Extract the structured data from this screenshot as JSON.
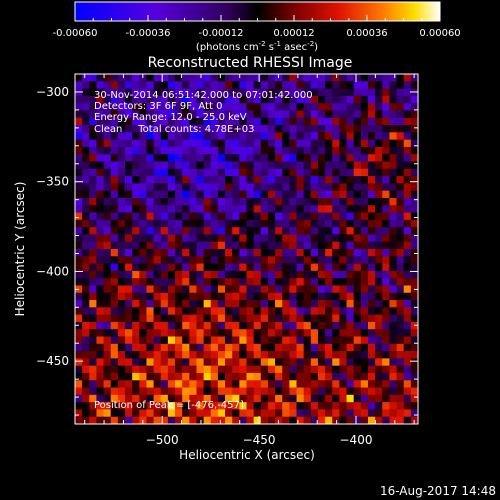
{
  "chart_data": {
    "type": "heatmap",
    "title": "Reconstructed RHESSI Image",
    "xlabel": "Heliocentric X (arcsec)",
    "ylabel": "Heliocentric Y (arcsec)",
    "xlim": [
      -545,
      -368
    ],
    "ylim": [
      -485,
      -290
    ],
    "xticks": [
      -500,
      -450,
      -400
    ],
    "yticks": [
      -300,
      -350,
      -400,
      -450
    ],
    "colorbar": {
      "min": -0.0006,
      "max": 0.0006,
      "ticks": [
        "-0.00060",
        "-0.00036",
        "-0.00012",
        "0.00012",
        "0.00036",
        "0.00060"
      ],
      "unit_parts": [
        "(photons cm",
        "-2",
        " s",
        "-1",
        " asec",
        "-2",
        ")"
      ]
    },
    "annotations": [
      "30-Nov-2014 06:51:42.000 to 07:01:42.000",
      "Detectors: 3F 6F 9F, Att 0",
      "Energy Range: 12.0 - 25.0 keV",
      "Clean     Total counts: 4.78E+03"
    ],
    "peak_label": "Position of Peak = [-476,-457]",
    "peak": [
      -476,
      -457
    ]
  },
  "footer": {
    "timestamp": "16-Aug-2017 14:48"
  },
  "colors": {
    "background": "#000000",
    "text": "#ffffff"
  }
}
